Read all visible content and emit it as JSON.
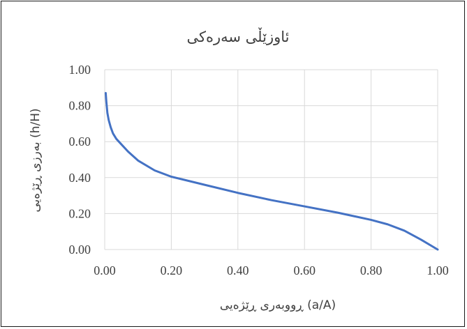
{
  "chart_data": {
    "type": "line",
    "title": "ئاوزێڵی سەرەکی",
    "xlabel": "ڕووبەری ڕێژەیی (a/A)",
    "ylabel": "بەرزی ڕێژەیی (h/H)",
    "xlim": [
      0,
      1
    ],
    "ylim": [
      0,
      1
    ],
    "x_ticks": [
      "0.00",
      "0.20",
      "0.40",
      "0.60",
      "0.80",
      "1.00"
    ],
    "y_ticks": [
      "0.00",
      "0.20",
      "0.40",
      "0.60",
      "0.80",
      "1.00"
    ],
    "grid": true,
    "legend": "none",
    "series": [
      {
        "color": "#4472c4",
        "points": [
          [
            0.003,
            0.87
          ],
          [
            0.005,
            0.82
          ],
          [
            0.008,
            0.76
          ],
          [
            0.012,
            0.72
          ],
          [
            0.018,
            0.68
          ],
          [
            0.025,
            0.645
          ],
          [
            0.035,
            0.615
          ],
          [
            0.05,
            0.585
          ],
          [
            0.07,
            0.545
          ],
          [
            0.1,
            0.495
          ],
          [
            0.15,
            0.44
          ],
          [
            0.2,
            0.405
          ],
          [
            0.3,
            0.36
          ],
          [
            0.4,
            0.315
          ],
          [
            0.5,
            0.275
          ],
          [
            0.6,
            0.24
          ],
          [
            0.7,
            0.205
          ],
          [
            0.8,
            0.165
          ],
          [
            0.85,
            0.14
          ],
          [
            0.9,
            0.105
          ],
          [
            0.95,
            0.055
          ],
          [
            1.0,
            0.0
          ]
        ]
      }
    ]
  }
}
